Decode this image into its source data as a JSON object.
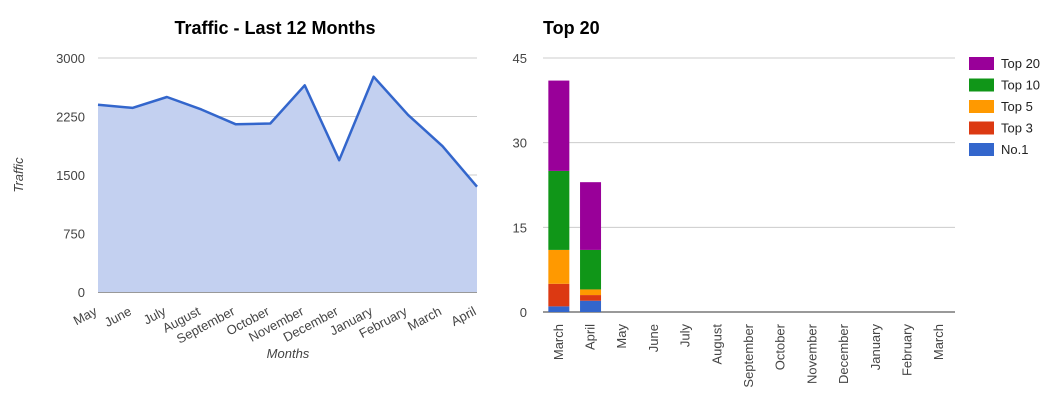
{
  "chart_data": [
    {
      "type": "area",
      "title": "Traffic - Last 12 Months",
      "xlabel": "Months",
      "ylabel": "Traffic",
      "categories": [
        "May",
        "June",
        "July",
        "August",
        "September",
        "October",
        "November",
        "December",
        "January",
        "February",
        "March",
        "April"
      ],
      "values": [
        2400,
        2360,
        2500,
        2340,
        2150,
        2160,
        2650,
        1690,
        2760,
        2270,
        1870,
        1350
      ],
      "ylim": [
        0,
        3000
      ],
      "yticks": [
        0,
        750,
        1500,
        2250,
        3000
      ],
      "grid": true,
      "colors": {
        "line": "#3366cc",
        "fill": "#c3d0f0"
      }
    },
    {
      "type": "bar",
      "stacked": true,
      "title": "Top 20",
      "xlabel": "",
      "ylabel": "",
      "categories": [
        "March",
        "April",
        "May",
        "June",
        "July",
        "August",
        "September",
        "October",
        "November",
        "December",
        "January",
        "February",
        "March"
      ],
      "series": [
        {
          "name": "No.1",
          "color": "#3366cc",
          "values": [
            1,
            2,
            0,
            0,
            0,
            0,
            0,
            0,
            0,
            0,
            0,
            0,
            0
          ]
        },
        {
          "name": "Top 3",
          "color": "#dc3912",
          "values": [
            4,
            1,
            0,
            0,
            0,
            0,
            0,
            0,
            0,
            0,
            0,
            0,
            0
          ]
        },
        {
          "name": "Top 5",
          "color": "#ff9900",
          "values": [
            6,
            1,
            0,
            0,
            0,
            0,
            0,
            0,
            0,
            0,
            0,
            0,
            0
          ]
        },
        {
          "name": "Top 10",
          "color": "#109618",
          "values": [
            14,
            7,
            0,
            0,
            0,
            0,
            0,
            0,
            0,
            0,
            0,
            0,
            0
          ]
        },
        {
          "name": "Top 20",
          "color": "#990099",
          "values": [
            16,
            12,
            0,
            0,
            0,
            0,
            0,
            0,
            0,
            0,
            0,
            0,
            0
          ]
        }
      ],
      "legend_order": [
        "Top 20",
        "Top 10",
        "Top 5",
        "Top 3",
        "No.1"
      ],
      "ylim": [
        0,
        45
      ],
      "yticks": [
        0,
        15,
        30,
        45
      ],
      "grid": true,
      "legend": "right"
    }
  ]
}
